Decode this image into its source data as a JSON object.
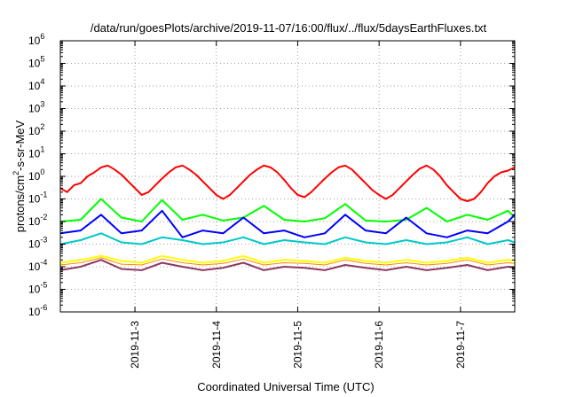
{
  "chart_data": {
    "type": "line",
    "title": "/data/run/goesPlots/archive/2019-11-07/16:00/flux/../flux/5daysEarthFluxes.txt",
    "xlabel": "Coordinated Universal Time (UTC)",
    "ylabel": "protons/cm2-s-sr-MeV",
    "ylabel_parts": {
      "pre": "protons/cm",
      "sup": "2",
      "post": "-s-sr-MeV"
    },
    "y_scale": "log",
    "ylim": [
      1e-06,
      1000000.0
    ],
    "y_ticks": [
      {
        "value": 1e-06,
        "base": "10",
        "exp": "-6"
      },
      {
        "value": 1e-05,
        "base": "10",
        "exp": "-5"
      },
      {
        "value": 0.0001,
        "base": "10",
        "exp": "-4"
      },
      {
        "value": 0.001,
        "base": "10",
        "exp": "-3"
      },
      {
        "value": 0.01,
        "base": "10",
        "exp": "-2"
      },
      {
        "value": 0.1,
        "base": "10",
        "exp": "-1"
      },
      {
        "value": 1.0,
        "base": "10",
        "exp": "0"
      },
      {
        "value": 10.0,
        "base": "10",
        "exp": "1"
      },
      {
        "value": 100.0,
        "base": "10",
        "exp": "2"
      },
      {
        "value": 1000.0,
        "base": "10",
        "exp": "3"
      },
      {
        "value": 10000.0,
        "base": "10",
        "exp": "4"
      },
      {
        "value": 100000.0,
        "base": "10",
        "exp": "5"
      },
      {
        "value": 1000000.0,
        "base": "10",
        "exp": "6"
      }
    ],
    "x_start": "2019-11-02 02:00",
    "x_end": "2019-11-07 16:00",
    "x_ticks": [
      {
        "date": "2019-11-03",
        "label": "2019-11-3"
      },
      {
        "date": "2019-11-04",
        "label": "2019-11-4"
      },
      {
        "date": "2019-11-05",
        "label": "2019-11-5"
      },
      {
        "date": "2019-11-06",
        "label": "2019-11-6"
      },
      {
        "date": "2019-11-07",
        "label": "2019-11-7"
      }
    ],
    "grid": true,
    "legend": "none",
    "series": [
      {
        "color": "#ff0000",
        "width": 2,
        "x": [
          "2019-11-02 02:00",
          "2019-11-02 04:00",
          "2019-11-02 06:00",
          "2019-11-02 08:00",
          "2019-11-02 10:00",
          "2019-11-02 12:00",
          "2019-11-02 14:00",
          "2019-11-02 16:00",
          "2019-11-02 18:00",
          "2019-11-02 20:00",
          "2019-11-02 22:00",
          "2019-11-03 00:00",
          "2019-11-03 02:00",
          "2019-11-03 04:00",
          "2019-11-03 06:00",
          "2019-11-03 08:00",
          "2019-11-03 10:00",
          "2019-11-03 12:00",
          "2019-11-03 14:00",
          "2019-11-03 16:00",
          "2019-11-03 18:00",
          "2019-11-03 20:00",
          "2019-11-03 22:00",
          "2019-11-04 00:00",
          "2019-11-04 02:00",
          "2019-11-04 04:00",
          "2019-11-04 06:00",
          "2019-11-04 08:00",
          "2019-11-04 10:00",
          "2019-11-04 12:00",
          "2019-11-04 14:00",
          "2019-11-04 16:00",
          "2019-11-04 18:00",
          "2019-11-04 20:00",
          "2019-11-04 22:00",
          "2019-11-05 00:00",
          "2019-11-05 02:00",
          "2019-11-05 04:00",
          "2019-11-05 06:00",
          "2019-11-05 08:00",
          "2019-11-05 10:00",
          "2019-11-05 12:00",
          "2019-11-05 14:00",
          "2019-11-05 16:00",
          "2019-11-05 18:00",
          "2019-11-05 20:00",
          "2019-11-05 22:00",
          "2019-11-06 00:00",
          "2019-11-06 02:00",
          "2019-11-06 04:00",
          "2019-11-06 06:00",
          "2019-11-06 08:00",
          "2019-11-06 10:00",
          "2019-11-06 12:00",
          "2019-11-06 14:00",
          "2019-11-06 16:00",
          "2019-11-06 18:00",
          "2019-11-06 20:00",
          "2019-11-06 22:00",
          "2019-11-07 00:00",
          "2019-11-07 02:00",
          "2019-11-07 04:00",
          "2019-11-07 06:00",
          "2019-11-07 08:00",
          "2019-11-07 10:00",
          "2019-11-07 12:00",
          "2019-11-07 14:00",
          "2019-11-07 16:00"
        ],
        "y": [
          0.3,
          0.2,
          0.4,
          0.5,
          1.0,
          1.5,
          2.5,
          3.0,
          2.0,
          1.2,
          0.6,
          0.3,
          0.15,
          0.2,
          0.4,
          0.8,
          1.5,
          2.5,
          3.0,
          2.0,
          1.2,
          0.6,
          0.3,
          0.15,
          0.1,
          0.15,
          0.3,
          0.6,
          1.2,
          2.0,
          3.0,
          2.5,
          1.5,
          0.7,
          0.3,
          0.15,
          0.12,
          0.2,
          0.4,
          0.8,
          1.5,
          2.5,
          3.0,
          2.0,
          1.0,
          0.5,
          0.25,
          0.15,
          0.1,
          0.15,
          0.3,
          0.6,
          1.2,
          2.2,
          3.0,
          2.0,
          1.0,
          0.4,
          0.2,
          0.1,
          0.08,
          0.1,
          0.2,
          0.5,
          1.0,
          1.5,
          1.8,
          2.5
        ]
      },
      {
        "color": "#00ff00",
        "width": 2,
        "x": [
          "2019-11-02 02:00",
          "2019-11-02 08:00",
          "2019-11-02 14:00",
          "2019-11-02 20:00",
          "2019-11-03 02:00",
          "2019-11-03 08:00",
          "2019-11-03 14:00",
          "2019-11-03 20:00",
          "2019-11-04 02:00",
          "2019-11-04 08:00",
          "2019-11-04 14:00",
          "2019-11-04 20:00",
          "2019-11-05 02:00",
          "2019-11-05 08:00",
          "2019-11-05 14:00",
          "2019-11-05 20:00",
          "2019-11-06 02:00",
          "2019-11-06 08:00",
          "2019-11-06 14:00",
          "2019-11-06 20:00",
          "2019-11-07 02:00",
          "2019-11-07 08:00",
          "2019-11-07 14:00",
          "2019-11-07 16:00"
        ],
        "y": [
          0.01,
          0.012,
          0.1,
          0.015,
          0.01,
          0.09,
          0.012,
          0.02,
          0.011,
          0.015,
          0.05,
          0.012,
          0.01,
          0.014,
          0.06,
          0.011,
          0.01,
          0.012,
          0.04,
          0.01,
          0.02,
          0.012,
          0.03,
          0.015
        ]
      },
      {
        "color": "#0000ff",
        "width": 2,
        "x": [
          "2019-11-02 02:00",
          "2019-11-02 08:00",
          "2019-11-02 14:00",
          "2019-11-02 20:00",
          "2019-11-03 02:00",
          "2019-11-03 08:00",
          "2019-11-03 14:00",
          "2019-11-03 20:00",
          "2019-11-04 02:00",
          "2019-11-04 08:00",
          "2019-11-04 14:00",
          "2019-11-04 20:00",
          "2019-11-05 02:00",
          "2019-11-05 08:00",
          "2019-11-05 14:00",
          "2019-11-05 20:00",
          "2019-11-06 02:00",
          "2019-11-06 08:00",
          "2019-11-06 14:00",
          "2019-11-06 20:00",
          "2019-11-07 02:00",
          "2019-11-07 08:00",
          "2019-11-07 14:00",
          "2019-11-07 16:00"
        ],
        "y": [
          0.003,
          0.004,
          0.02,
          0.003,
          0.004,
          0.03,
          0.002,
          0.004,
          0.003,
          0.015,
          0.003,
          0.004,
          0.002,
          0.003,
          0.02,
          0.004,
          0.003,
          0.015,
          0.003,
          0.002,
          0.004,
          0.003,
          0.01,
          0.02
        ]
      },
      {
        "color": "#00c8c8",
        "width": 2,
        "x": [
          "2019-11-02 02:00",
          "2019-11-02 08:00",
          "2019-11-02 14:00",
          "2019-11-02 20:00",
          "2019-11-03 02:00",
          "2019-11-03 08:00",
          "2019-11-03 14:00",
          "2019-11-03 20:00",
          "2019-11-04 02:00",
          "2019-11-04 08:00",
          "2019-11-04 14:00",
          "2019-11-04 20:00",
          "2019-11-05 02:00",
          "2019-11-05 08:00",
          "2019-11-05 14:00",
          "2019-11-05 20:00",
          "2019-11-06 02:00",
          "2019-11-06 08:00",
          "2019-11-06 14:00",
          "2019-11-06 20:00",
          "2019-11-07 02:00",
          "2019-11-07 08:00",
          "2019-11-07 14:00",
          "2019-11-07 16:00"
        ],
        "y": [
          0.001,
          0.0015,
          0.003,
          0.0012,
          0.001,
          0.002,
          0.0015,
          0.001,
          0.0012,
          0.002,
          0.001,
          0.0015,
          0.0012,
          0.001,
          0.002,
          0.0012,
          0.001,
          0.0015,
          0.001,
          0.0012,
          0.002,
          0.001,
          0.0015,
          0.0012
        ]
      },
      {
        "color": "#ffff00",
        "width": 2,
        "x": [
          "2019-11-02 02:00",
          "2019-11-02 08:00",
          "2019-11-02 14:00",
          "2019-11-02 20:00",
          "2019-11-03 02:00",
          "2019-11-03 08:00",
          "2019-11-03 14:00",
          "2019-11-03 20:00",
          "2019-11-04 02:00",
          "2019-11-04 08:00",
          "2019-11-04 14:00",
          "2019-11-04 20:00",
          "2019-11-05 02:00",
          "2019-11-05 08:00",
          "2019-11-05 14:00",
          "2019-11-05 20:00",
          "2019-11-06 02:00",
          "2019-11-06 08:00",
          "2019-11-06 14:00",
          "2019-11-06 20:00",
          "2019-11-07 02:00",
          "2019-11-07 08:00",
          "2019-11-07 14:00",
          "2019-11-07 16:00"
        ],
        "y": [
          0.00015,
          0.0002,
          0.0003,
          0.00018,
          0.00015,
          0.0003,
          0.0002,
          0.00015,
          0.00018,
          0.0003,
          0.00015,
          0.0002,
          0.00018,
          0.00015,
          0.00025,
          0.00018,
          0.00015,
          0.0002,
          0.00015,
          0.00018,
          0.00025,
          0.00015,
          0.0002,
          0.00018
        ]
      },
      {
        "color": "#ff8800",
        "width": 1,
        "x": [
          "2019-11-02 02:00",
          "2019-11-02 08:00",
          "2019-11-02 14:00",
          "2019-11-02 20:00",
          "2019-11-03 02:00",
          "2019-11-03 08:00",
          "2019-11-03 14:00",
          "2019-11-03 20:00",
          "2019-11-04 02:00",
          "2019-11-04 08:00",
          "2019-11-04 14:00",
          "2019-11-04 20:00",
          "2019-11-05 02:00",
          "2019-11-05 08:00",
          "2019-11-05 14:00",
          "2019-11-05 20:00",
          "2019-11-06 02:00",
          "2019-11-06 08:00",
          "2019-11-06 14:00",
          "2019-11-06 20:00",
          "2019-11-07 02:00",
          "2019-11-07 08:00",
          "2019-11-07 14:00",
          "2019-11-07 16:00"
        ],
        "y": [
          0.00012,
          0.00015,
          0.00025,
          0.00013,
          0.00012,
          0.00022,
          0.00015,
          0.00012,
          0.00014,
          0.00022,
          0.00012,
          0.00015,
          0.00014,
          0.00012,
          0.0002,
          0.00014,
          0.00012,
          0.00015,
          0.00012,
          0.00014,
          0.0002,
          0.00012,
          0.00015,
          0.00014
        ]
      },
      {
        "color": "#8b3a62",
        "width": 2,
        "x": [
          "2019-11-02 02:00",
          "2019-11-02 08:00",
          "2019-11-02 14:00",
          "2019-11-02 20:00",
          "2019-11-03 02:00",
          "2019-11-03 08:00",
          "2019-11-03 14:00",
          "2019-11-03 20:00",
          "2019-11-04 02:00",
          "2019-11-04 08:00",
          "2019-11-04 14:00",
          "2019-11-04 20:00",
          "2019-11-05 02:00",
          "2019-11-05 08:00",
          "2019-11-05 14:00",
          "2019-11-05 20:00",
          "2019-11-06 02:00",
          "2019-11-06 08:00",
          "2019-11-06 14:00",
          "2019-11-06 20:00",
          "2019-11-07 02:00",
          "2019-11-07 08:00",
          "2019-11-07 14:00",
          "2019-11-07 16:00"
        ],
        "y": [
          7e-05,
          0.0001,
          0.0002,
          8e-05,
          7e-05,
          0.00015,
          0.0001,
          7e-05,
          9e-05,
          0.00015,
          7e-05,
          0.0001,
          9e-05,
          7e-05,
          0.00012,
          9e-05,
          7e-05,
          0.0001,
          7e-05,
          9e-05,
          0.00012,
          7e-05,
          0.0001,
          9e-05
        ]
      }
    ]
  }
}
